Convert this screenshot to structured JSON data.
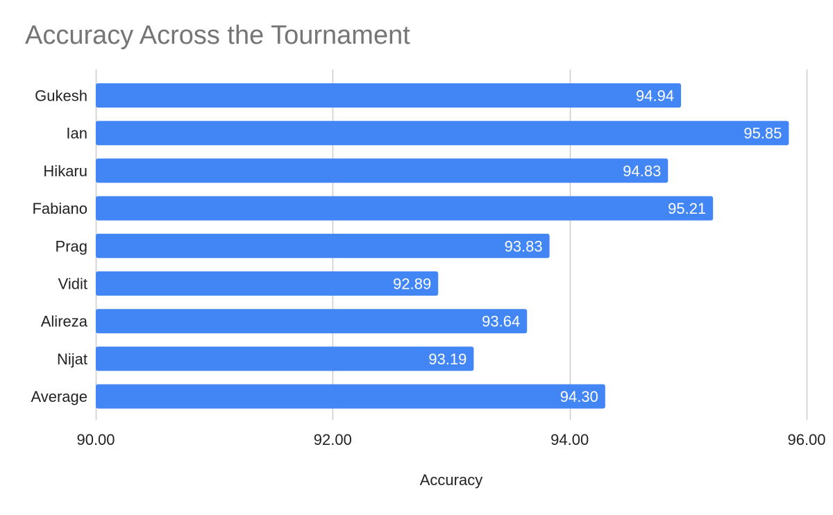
{
  "chart_data": {
    "type": "bar",
    "orientation": "horizontal",
    "title": "Accuracy Across the Tournament",
    "xlabel": "Accuracy",
    "ylabel": "",
    "categories": [
      "Gukesh",
      "Ian",
      "Hikaru",
      "Fabiano",
      "Prag",
      "Vidit",
      "Alireza",
      "Nijat",
      "Average"
    ],
    "values": [
      94.94,
      95.85,
      94.83,
      95.21,
      93.83,
      92.89,
      93.64,
      93.19,
      94.3
    ],
    "data_labels": [
      "94.94",
      "95.85",
      "94.83",
      "95.21",
      "93.83",
      "92.89",
      "93.64",
      "93.19",
      "94.30"
    ],
    "xlim": [
      90,
      96
    ],
    "x_ticks": [
      90,
      92,
      94,
      96
    ],
    "x_tick_labels": [
      "90.00",
      "92.00",
      "94.00",
      "96.00"
    ],
    "grid": "vertical",
    "legend": "none",
    "bar_color": "#4285f4",
    "gridline_color": "#cccccc",
    "title_color": "#757575"
  }
}
